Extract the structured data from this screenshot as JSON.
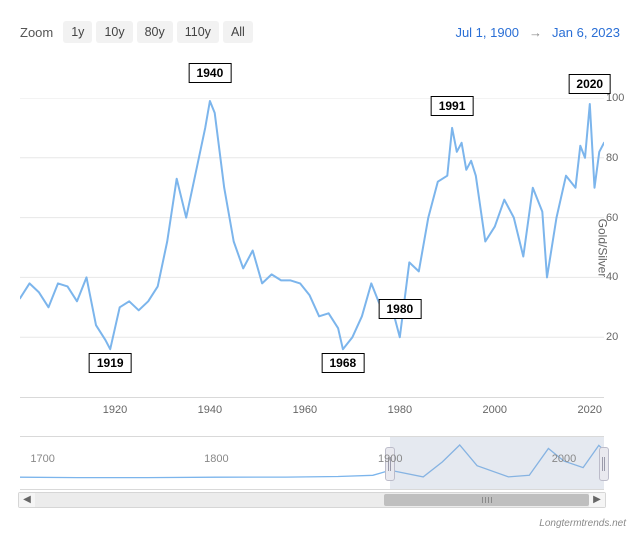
{
  "toolbar": {
    "zoom_label": "Zoom",
    "buttons": [
      "1y",
      "10y",
      "80y",
      "110y",
      "All"
    ],
    "date_from": "Jul 1, 1900",
    "date_arrow": "→",
    "date_to": "Jan 6, 2023"
  },
  "chart": {
    "type": "line",
    "y_title": "Gold/Silver",
    "xlim": [
      1900,
      2023
    ],
    "ylim": [
      0,
      100
    ],
    "yticks": [
      20,
      40,
      60,
      80,
      100
    ],
    "xticks": [
      1920,
      1940,
      1960,
      1980,
      2000,
      2020
    ],
    "line_color": "#7cb5ec",
    "line_width": 2,
    "grid_color": "#e7e7e7",
    "background_color": "#ffffff",
    "series": [
      [
        1900,
        33
      ],
      [
        1902,
        38
      ],
      [
        1904,
        35
      ],
      [
        1906,
        30
      ],
      [
        1908,
        38
      ],
      [
        1910,
        37
      ],
      [
        1912,
        32
      ],
      [
        1914,
        40
      ],
      [
        1916,
        24
      ],
      [
        1918,
        19
      ],
      [
        1919,
        16
      ],
      [
        1921,
        30
      ],
      [
        1923,
        32
      ],
      [
        1925,
        29
      ],
      [
        1927,
        32
      ],
      [
        1929,
        37
      ],
      [
        1931,
        52
      ],
      [
        1933,
        73
      ],
      [
        1935,
        60
      ],
      [
        1937,
        75
      ],
      [
        1939,
        90
      ],
      [
        1940,
        99
      ],
      [
        1941,
        95
      ],
      [
        1943,
        70
      ],
      [
        1945,
        52
      ],
      [
        1947,
        43
      ],
      [
        1949,
        49
      ],
      [
        1951,
        38
      ],
      [
        1953,
        41
      ],
      [
        1955,
        39
      ],
      [
        1957,
        39
      ],
      [
        1959,
        38
      ],
      [
        1961,
        34
      ],
      [
        1963,
        27
      ],
      [
        1965,
        28
      ],
      [
        1967,
        23
      ],
      [
        1968,
        16
      ],
      [
        1970,
        20
      ],
      [
        1972,
        27
      ],
      [
        1974,
        38
      ],
      [
        1976,
        30
      ],
      [
        1978,
        32
      ],
      [
        1980,
        20
      ],
      [
        1982,
        45
      ],
      [
        1984,
        42
      ],
      [
        1986,
        60
      ],
      [
        1988,
        72
      ],
      [
        1990,
        74
      ],
      [
        1991,
        90
      ],
      [
        1992,
        82
      ],
      [
        1993,
        85
      ],
      [
        1994,
        76
      ],
      [
        1995,
        79
      ],
      [
        1996,
        74
      ],
      [
        1998,
        52
      ],
      [
        2000,
        57
      ],
      [
        2002,
        66
      ],
      [
        2004,
        60
      ],
      [
        2006,
        47
      ],
      [
        2008,
        70
      ],
      [
        2010,
        62
      ],
      [
        2011,
        40
      ],
      [
        2013,
        60
      ],
      [
        2015,
        74
      ],
      [
        2017,
        70
      ],
      [
        2018,
        84
      ],
      [
        2019,
        80
      ],
      [
        2020,
        98
      ],
      [
        2021,
        70
      ],
      [
        2022,
        82
      ],
      [
        2023,
        85
      ]
    ],
    "callouts": [
      {
        "year": 1919,
        "value": 16,
        "label": "1919",
        "placement": "below"
      },
      {
        "year": 1940,
        "value": 99,
        "label": "1940",
        "placement": "above",
        "offset_y": -18
      },
      {
        "year": 1968,
        "value": 16,
        "label": "1968",
        "placement": "below"
      },
      {
        "year": 1980,
        "value": 20,
        "label": "1980",
        "placement": "above",
        "offset_y": -18
      },
      {
        "year": 1991,
        "value": 90,
        "label": "1991",
        "placement": "above",
        "offset_y": -12
      },
      {
        "year": 2020,
        "value": 98,
        "label": "2020",
        "placement": "above",
        "offset_y": -10
      }
    ]
  },
  "mini": {
    "xlim": [
      1687,
      2023
    ],
    "xticks": [
      1700,
      1800,
      1900,
      2000
    ],
    "selection": [
      1900,
      2023
    ],
    "line_color": "#7cb5ec",
    "mask_color": "rgba(160,175,200,0.28)",
    "series": [
      [
        1687,
        15
      ],
      [
        1720,
        14
      ],
      [
        1760,
        14
      ],
      [
        1800,
        15
      ],
      [
        1840,
        15.5
      ],
      [
        1870,
        17
      ],
      [
        1890,
        20
      ],
      [
        1900,
        33
      ],
      [
        1919,
        16
      ],
      [
        1930,
        55
      ],
      [
        1940,
        99
      ],
      [
        1950,
        45
      ],
      [
        1968,
        16
      ],
      [
        1980,
        20
      ],
      [
        1991,
        90
      ],
      [
        2000,
        57
      ],
      [
        2011,
        40
      ],
      [
        2020,
        98
      ],
      [
        2023,
        85
      ]
    ]
  },
  "scrollbar": {
    "thumb_start_pct": 63,
    "thumb_width_pct": 37
  },
  "attribution": "Longtermtrends.net"
}
